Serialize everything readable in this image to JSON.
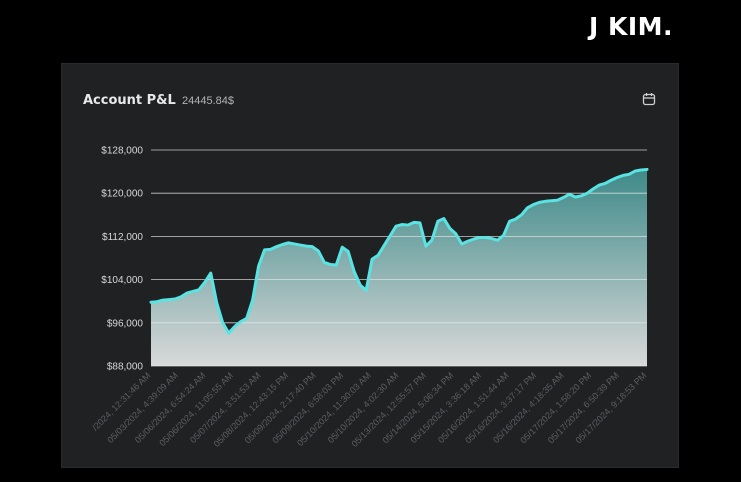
{
  "brand": {
    "text": "J KIM."
  },
  "card": {
    "title": "Account P&L",
    "value": "24445.84$",
    "calendar_icon": "calendar-icon"
  },
  "colors": {
    "background": "#000000",
    "card": "#202123",
    "line": "#59e3e3",
    "area_top": "#3e8a89",
    "area_bottom": "#d9d9d9",
    "grid": "#e8e8e8"
  },
  "chart_data": {
    "type": "area",
    "title": "",
    "xlabel": "",
    "ylabel": "",
    "ylim": [
      88000,
      128000
    ],
    "yticks": [
      "$88,000",
      "$96,000",
      "$104,000",
      "$112,000",
      "$120,000",
      "$128,000"
    ],
    "ytick_values": [
      88000,
      96000,
      104000,
      112000,
      120000,
      128000
    ],
    "grid": true,
    "legend": "none",
    "xticks": [
      "/2024, 12:31:46 AM",
      "05/03/2024, 4:39:09 AM",
      "05/06/2024, 6:54:24 AM",
      "05/06/2024, 11:05:55 AM",
      "05/07/2024, 3:51:53 AM",
      "05/08/2024, 12:43:15 PM",
      "05/09/2024, 2:17:40 PM",
      "05/09/2024, 6:58:03 PM",
      "05/10/2024, 11:30:03 AM",
      "05/10/2024, 4:02:30 AM",
      "05/13/2024, 12:55:57 PM",
      "05/14/2024, 5:06:34 PM",
      "05/15/2024, 3:36:18 AM",
      "05/16/2024, 1:51:44 AM",
      "05/16/2024, 3:37:17 PM",
      "05/16/2024, 4:18:35 AM",
      "05/17/2024, 1:58:20 PM",
      "05/17/2024, 6:50:39 PM",
      "05/17/2024, 9:18:53 PM"
    ],
    "series": [
      {
        "values": [
          99800,
          99900,
          100200,
          100300,
          100400,
          100800,
          101500,
          101800,
          102100,
          103500,
          105200,
          99700,
          96000,
          94100,
          95300,
          96200,
          96800,
          100200,
          106500,
          109500,
          109600,
          110100,
          110500,
          110800,
          110600,
          110400,
          110200,
          110100,
          109300,
          107200,
          106800,
          106700,
          110000,
          109200,
          105500,
          103000,
          102000,
          107800,
          108500,
          110300,
          112100,
          113900,
          114200,
          114100,
          114600,
          114500,
          110200,
          111300,
          114800,
          115300,
          113500,
          112500,
          110600,
          111100,
          111500,
          111800,
          111800,
          111600,
          111300,
          112200,
          114800,
          115200,
          116000,
          117300,
          117900,
          118300,
          118500,
          118600,
          118700,
          119200,
          119800,
          119300,
          119500,
          120000,
          120800,
          121500,
          121800,
          122400,
          122900,
          123300,
          123500,
          124100,
          124300,
          124400
        ]
      }
    ]
  }
}
